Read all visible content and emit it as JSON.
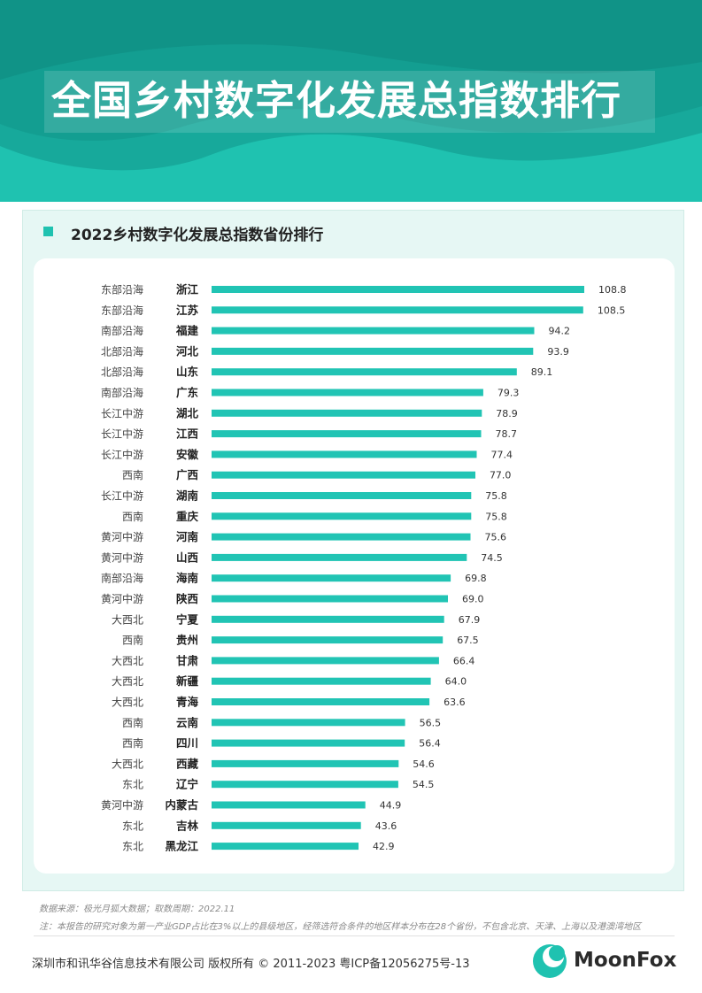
{
  "header": {
    "title": "全国乡村数字化发展总指数排行"
  },
  "section": {
    "title": "2022乡村数字化发展总指数省份排行"
  },
  "colors": {
    "accent": "#1fc2b0",
    "bar": "#21c4b4",
    "card_bg": "#e6f7f4"
  },
  "chart_data": {
    "type": "bar",
    "orientation": "horizontal",
    "title": "2022乡村数字化发展总指数省份排行",
    "categories": [
      "浙江",
      "江苏",
      "福建",
      "河北",
      "山东",
      "广东",
      "湖北",
      "江西",
      "安徽",
      "广西",
      "湖南",
      "重庆",
      "河南",
      "山西",
      "海南",
      "陕西",
      "宁夏",
      "贵州",
      "甘肃",
      "新疆",
      "青海",
      "云南",
      "四川",
      "西藏",
      "辽宁",
      "内蒙古",
      "吉林",
      "黑龙江"
    ],
    "regions": [
      "东部沿海",
      "东部沿海",
      "南部沿海",
      "北部沿海",
      "北部沿海",
      "南部沿海",
      "长江中游",
      "长江中游",
      "长江中游",
      "西南",
      "长江中游",
      "西南",
      "黄河中游",
      "黄河中游",
      "南部沿海",
      "黄河中游",
      "大西北",
      "西南",
      "大西北",
      "大西北",
      "大西北",
      "西南",
      "西南",
      "大西北",
      "东北",
      "黄河中游",
      "东北",
      "东北"
    ],
    "values": [
      108.8,
      108.5,
      94.2,
      93.9,
      89.1,
      79.3,
      78.9,
      78.7,
      77.4,
      77.0,
      75.8,
      75.8,
      75.6,
      74.5,
      69.8,
      69.0,
      67.9,
      67.5,
      66.4,
      64.0,
      63.6,
      56.5,
      56.4,
      54.6,
      54.5,
      44.9,
      43.6,
      42.9
    ],
    "value_labels": [
      "108.8",
      "108.5",
      "94.2",
      "93.9",
      "89.1",
      "79.3",
      "78.9",
      "78.7",
      "77.4",
      "77.0",
      "75.8",
      "75.8",
      "75.6",
      "74.5",
      "69.8",
      "69.0",
      "67.9",
      "67.5",
      "66.4",
      "64.0",
      "63.6",
      "56.5",
      "56.4",
      "54.6",
      "54.5",
      "44.9",
      "43.6",
      "42.9"
    ],
    "xlim": [
      0,
      108.8
    ],
    "grid": false,
    "legend": "none"
  },
  "footer": {
    "source": "数据来源：极光月狐大数据；取数周期：2022.11",
    "note": "注：本报告的研究对象为第一产业GDP占比在3%以上的县级地区，经筛选符合条件的地区样本分布在28个省份，不包含北京、天津、上海以及港澳湾地区",
    "copyright": "深圳市和讯华谷信息技术有限公司 版权所有 © 2011-2023 粤ICP备12056275号-13",
    "brand": "MoonFox"
  }
}
